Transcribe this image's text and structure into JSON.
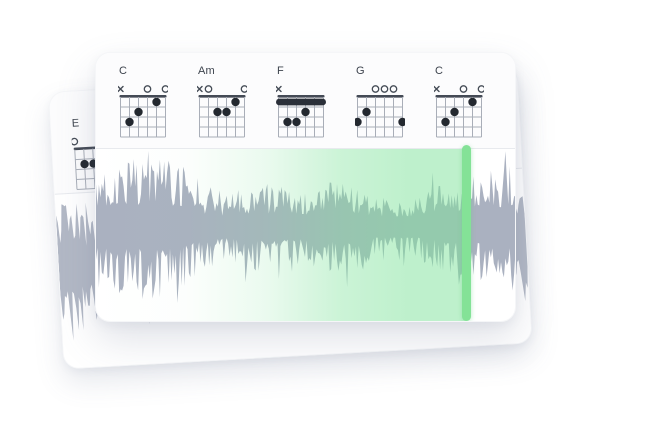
{
  "colors": {
    "page_bg": "#ffffff",
    "card_bg": "#ffffff",
    "strip_bg": "#fcfcfd",
    "divider": "#e8eaee",
    "chord_label": "#3d434d",
    "grid_line": "#a9aeb8",
    "nut": "#444a55",
    "dot": "#23282f",
    "marker": "#454c56",
    "waveform_front": "#aab1c0",
    "waveform_back": "#b2b8c5",
    "playhead": "#84e297",
    "selection_rgb": "126,226,154"
  },
  "front_card": {
    "chords": [
      {
        "name": "C",
        "markers": [
          "x",
          "",
          "",
          "o",
          "",
          "o"
        ],
        "dots": [
          [
            1,
            3
          ],
          [
            2,
            2
          ],
          [
            4,
            1
          ]
        ]
      },
      {
        "name": "Am",
        "markers": [
          "x",
          "o",
          "",
          "",
          "",
          "o"
        ],
        "dots": [
          [
            2,
            2
          ],
          [
            3,
            2
          ],
          [
            4,
            1
          ]
        ]
      },
      {
        "name": "F",
        "markers": [
          "x",
          "",
          "",
          "",
          "",
          ""
        ],
        "dots": [
          [
            1,
            3
          ],
          [
            2,
            3
          ],
          [
            3,
            2
          ]
        ],
        "barre": 1
      },
      {
        "name": "G",
        "markers": [
          "",
          "",
          "o",
          "o",
          "o",
          ""
        ],
        "dots": [
          [
            0,
            3
          ],
          [
            1,
            2
          ],
          [
            5,
            3
          ]
        ]
      },
      {
        "name": "C",
        "markers": [
          "x",
          "",
          "",
          "o",
          "",
          "o"
        ],
        "dots": [
          [
            1,
            3
          ],
          [
            2,
            2
          ],
          [
            4,
            1
          ]
        ]
      }
    ]
  },
  "back_card": {
    "chords": [
      {
        "name": "E",
        "markers": [
          "o",
          "",
          "",
          "",
          "o",
          "o"
        ],
        "dots": [
          [
            1,
            2
          ],
          [
            2,
            2
          ],
          [
            3,
            1
          ]
        ]
      }
    ]
  }
}
